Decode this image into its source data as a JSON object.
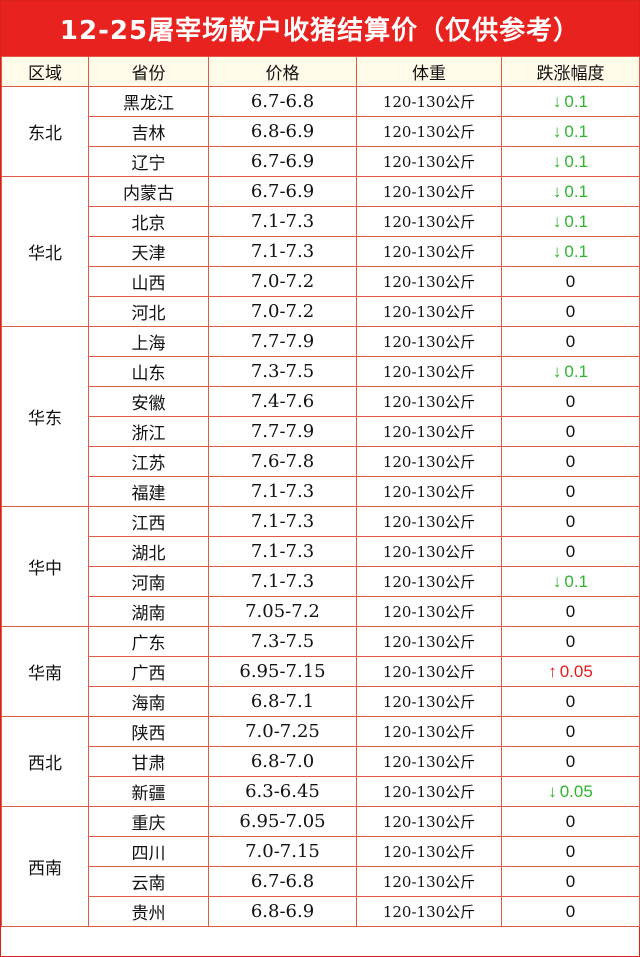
{
  "title": "12-25屠宰场散户收猪结算价（仅供参考）",
  "headers": [
    "区域",
    "省份",
    "价格",
    "体重",
    "跌涨幅度"
  ],
  "colors": {
    "down": "#2fb52f",
    "up": "#e31b1b",
    "title_bg": "#e8221f"
  },
  "regions": [
    {
      "name": "东北",
      "rows": [
        {
          "province": "黑龙江",
          "price": "6.7-6.8",
          "weight": "120-130公斤",
          "dir": "down",
          "change": "0.1"
        },
        {
          "province": "吉林",
          "price": "6.8-6.9",
          "weight": "120-130公斤",
          "dir": "down",
          "change": "0.1"
        },
        {
          "province": "辽宁",
          "price": "6.7-6.9",
          "weight": "120-130公斤",
          "dir": "down",
          "change": "0.1"
        }
      ]
    },
    {
      "name": "华北",
      "rows": [
        {
          "province": "内蒙古",
          "price": "6.7-6.9",
          "weight": "120-130公斤",
          "dir": "down",
          "change": "0.1"
        },
        {
          "province": "北京",
          "price": "7.1-7.3",
          "weight": "120-130公斤",
          "dir": "down",
          "change": "0.1"
        },
        {
          "province": "天津",
          "price": "7.1-7.3",
          "weight": "120-130公斤",
          "dir": "down",
          "change": "0.1"
        },
        {
          "province": "山西",
          "price": "7.0-7.2",
          "weight": "120-130公斤",
          "dir": "none",
          "change": "0"
        },
        {
          "province": "河北",
          "price": "7.0-7.2",
          "weight": "120-130公斤",
          "dir": "none",
          "change": "0"
        }
      ]
    },
    {
      "name": "华东",
      "rows": [
        {
          "province": "上海",
          "price": "7.7-7.9",
          "weight": "120-130公斤",
          "dir": "none",
          "change": "0"
        },
        {
          "province": "山东",
          "price": "7.3-7.5",
          "weight": "120-130公斤",
          "dir": "down",
          "change": "0.1"
        },
        {
          "province": "安徽",
          "price": "7.4-7.6",
          "weight": "120-130公斤",
          "dir": "none",
          "change": "0"
        },
        {
          "province": "浙江",
          "price": "7.7-7.9",
          "weight": "120-130公斤",
          "dir": "none",
          "change": "0"
        },
        {
          "province": "江苏",
          "price": "7.6-7.8",
          "weight": "120-130公斤",
          "dir": "none",
          "change": "0"
        },
        {
          "province": "福建",
          "price": "7.1-7.3",
          "weight": "120-130公斤",
          "dir": "none",
          "change": "0"
        }
      ]
    },
    {
      "name": "华中",
      "rows": [
        {
          "province": "江西",
          "price": "7.1-7.3",
          "weight": "120-130公斤",
          "dir": "none",
          "change": "0"
        },
        {
          "province": "湖北",
          "price": "7.1-7.3",
          "weight": "120-130公斤",
          "dir": "none",
          "change": "0"
        },
        {
          "province": "河南",
          "price": "7.1-7.3",
          "weight": "120-130公斤",
          "dir": "down",
          "change": "0.1"
        },
        {
          "province": "湖南",
          "price": "7.05-7.2",
          "weight": "120-130公斤",
          "dir": "none",
          "change": "0"
        }
      ]
    },
    {
      "name": "华南",
      "rows": [
        {
          "province": "广东",
          "price": "7.3-7.5",
          "weight": "120-130公斤",
          "dir": "none",
          "change": "0"
        },
        {
          "province": "广西",
          "price": "6.95-7.15",
          "weight": "120-130公斤",
          "dir": "up",
          "change": "0.05"
        },
        {
          "province": "海南",
          "price": "6.8-7.1",
          "weight": "120-130公斤",
          "dir": "none",
          "change": "0"
        }
      ]
    },
    {
      "name": "西北",
      "rows": [
        {
          "province": "陕西",
          "price": "7.0-7.25",
          "weight": "120-130公斤",
          "dir": "none",
          "change": "0"
        },
        {
          "province": "甘肃",
          "price": "6.8-7.0",
          "weight": "120-130公斤",
          "dir": "none",
          "change": "0"
        },
        {
          "province": "新疆",
          "price": "6.3-6.45",
          "weight": "120-130公斤",
          "dir": "down",
          "change": "0.05"
        }
      ]
    },
    {
      "name": "西南",
      "rows": [
        {
          "province": "重庆",
          "price": "6.95-7.05",
          "weight": "120-130公斤",
          "dir": "none",
          "change": "0"
        },
        {
          "province": "四川",
          "price": "7.0-7.15",
          "weight": "120-130公斤",
          "dir": "none",
          "change": "0"
        },
        {
          "province": "云南",
          "price": "6.7-6.8",
          "weight": "120-130公斤",
          "dir": "none",
          "change": "0"
        },
        {
          "province": "贵州",
          "price": "6.8-6.9",
          "weight": "120-130公斤",
          "dir": "none",
          "change": "0"
        }
      ]
    }
  ]
}
